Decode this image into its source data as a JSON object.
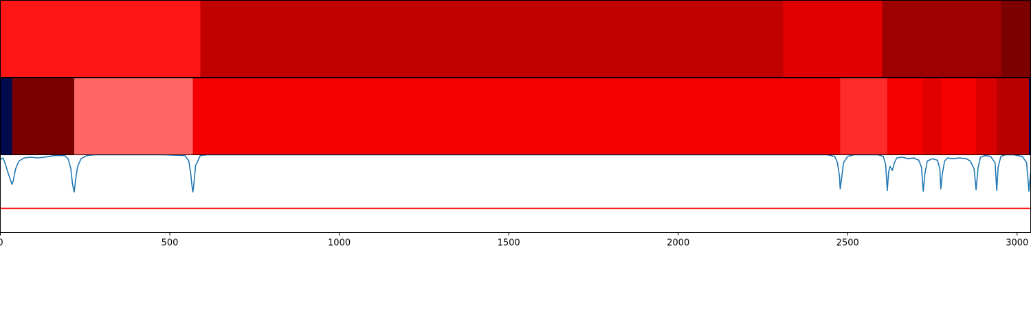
{
  "chart_data": [
    {
      "type": "heatmap",
      "xlim": [
        0,
        3040
      ],
      "segments": [
        {
          "start": 0,
          "end": 590,
          "color": "#ff1616"
        },
        {
          "start": 590,
          "end": 2310,
          "color": "#c10000"
        },
        {
          "start": 2310,
          "end": 2602,
          "color": "#e10000"
        },
        {
          "start": 2602,
          "end": 2953,
          "color": "#9d0000"
        },
        {
          "start": 2953,
          "end": 3040,
          "color": "#7d0000"
        }
      ]
    },
    {
      "type": "heatmap",
      "xlim": [
        0,
        3040
      ],
      "segments": [
        {
          "start": 0,
          "end": 35,
          "color": "#000a4d"
        },
        {
          "start": 35,
          "end": 218,
          "color": "#7a0000"
        },
        {
          "start": 218,
          "end": 568,
          "color": "#ff6666"
        },
        {
          "start": 568,
          "end": 2478,
          "color": "#f40000"
        },
        {
          "start": 2478,
          "end": 2617,
          "color": "#ff2c2c"
        },
        {
          "start": 2617,
          "end": 2723,
          "color": "#f40000"
        },
        {
          "start": 2723,
          "end": 2775,
          "color": "#e00000"
        },
        {
          "start": 2775,
          "end": 2879,
          "color": "#f40000"
        },
        {
          "start": 2879,
          "end": 2940,
          "color": "#d90000"
        },
        {
          "start": 2940,
          "end": 3035,
          "color": "#b80000"
        },
        {
          "start": 3035,
          "end": 3040,
          "color": "#000a4d"
        }
      ]
    },
    {
      "type": "line",
      "xlim": [
        0,
        3040
      ],
      "ylim": [
        0,
        1
      ],
      "xticks": [
        0,
        500,
        1000,
        1500,
        2000,
        2500,
        3000
      ],
      "threshold": {
        "value": 0.31,
        "color": "#ff0000"
      },
      "series": [
        {
          "color": "#1f77b4",
          "x": [
            0,
            8,
            15,
            22,
            28,
            34,
            38,
            45,
            55,
            70,
            90,
            110,
            130,
            160,
            190,
            200,
            208,
            213,
            218,
            222,
            228,
            238,
            255,
            280,
            480,
            545,
            556,
            562,
            566,
            568,
            571,
            576,
            590,
            610,
            2440,
            2462,
            2470,
            2476,
            2478,
            2481,
            2488,
            2500,
            2520,
            2590,
            2605,
            2612,
            2617,
            2621,
            2625,
            2632,
            2638,
            2645,
            2660,
            2680,
            2695,
            2710,
            2718,
            2723,
            2728,
            2735,
            2750,
            2765,
            2772,
            2775,
            2779,
            2786,
            2795,
            2810,
            2830,
            2850,
            2862,
            2873,
            2879,
            2885,
            2892,
            2905,
            2922,
            2935,
            2940,
            2944,
            2952,
            2965,
            2990,
            3015,
            3028,
            3035,
            3040
          ],
          "y": [
            0.94,
            0.96,
            0.88,
            0.78,
            0.7,
            0.62,
            0.66,
            0.82,
            0.92,
            0.96,
            0.97,
            0.96,
            0.97,
            0.99,
            0.99,
            0.95,
            0.82,
            0.62,
            0.52,
            0.68,
            0.85,
            0.95,
            0.99,
            1.0,
            1.0,
            0.99,
            0.92,
            0.75,
            0.58,
            0.52,
            0.62,
            0.86,
            0.99,
            1.0,
            1.0,
            0.98,
            0.9,
            0.72,
            0.56,
            0.66,
            0.9,
            0.98,
            1.0,
            1.0,
            0.98,
            0.88,
            0.54,
            0.78,
            0.85,
            0.8,
            0.9,
            0.96,
            0.97,
            0.95,
            0.96,
            0.93,
            0.84,
            0.53,
            0.76,
            0.92,
            0.95,
            0.93,
            0.82,
            0.56,
            0.74,
            0.92,
            0.96,
            0.95,
            0.96,
            0.95,
            0.92,
            0.82,
            0.55,
            0.84,
            0.97,
            0.99,
            0.98,
            0.9,
            0.54,
            0.84,
            0.98,
            1.0,
            1.0,
            0.98,
            0.9,
            0.53,
            0.78
          ]
        }
      ]
    }
  ]
}
